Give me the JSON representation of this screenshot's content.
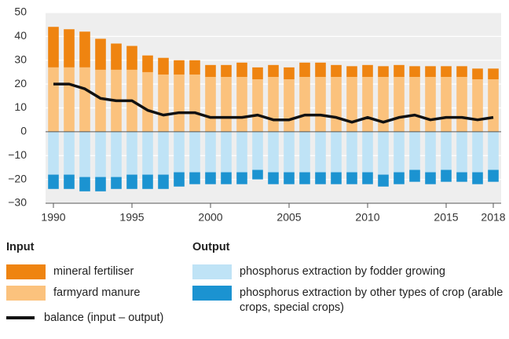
{
  "chart_data": {
    "type": "bar",
    "x": [
      1990,
      1991,
      1992,
      1993,
      1994,
      1995,
      1996,
      1997,
      1998,
      1999,
      2000,
      2001,
      2002,
      2003,
      2004,
      2005,
      2006,
      2007,
      2008,
      2009,
      2010,
      2011,
      2012,
      2013,
      2014,
      2015,
      2016,
      2017,
      2018
    ],
    "xlim": [
      1989.5,
      2018.5
    ],
    "xticks": [
      1990,
      1995,
      2000,
      2005,
      2010,
      2015,
      2018
    ],
    "ylim": [
      -30,
      50
    ],
    "yticks": [
      {
        "value": -30,
        "label": "−30"
      },
      {
        "value": -20,
        "label": "−20"
      },
      {
        "value": -10,
        "label": "−10"
      },
      0,
      10,
      20,
      30,
      40,
      50
    ],
    "grid": true,
    "legend_groups": [
      "Input",
      "Output"
    ],
    "series": [
      {
        "name": "mineral fertiliser",
        "color": "#ef8410",
        "group": 0,
        "type": "bar",
        "values": [
          17,
          16,
          15,
          13,
          11,
          10,
          7,
          7,
          6,
          6,
          5,
          5,
          6,
          5,
          5,
          5,
          6,
          6,
          5,
          4.5,
          5,
          4.5,
          5,
          4.5,
          4.5,
          4.5,
          4.5,
          4.5,
          4.5
        ]
      },
      {
        "name": "farmyard manure",
        "color": "#fbc27d",
        "group": 0,
        "type": "bar",
        "values": [
          27,
          27,
          27,
          26,
          26,
          26,
          25,
          24,
          24,
          24,
          23,
          23,
          23,
          22,
          23,
          22,
          23,
          23,
          23,
          23,
          23,
          23,
          23,
          23,
          23,
          23,
          23,
          22,
          22
        ]
      },
      {
        "name": "phosphorus extraction by fodder growing",
        "color": "#bfe3f6",
        "group": 1,
        "type": "bar",
        "values": [
          -18,
          -18,
          -19,
          -19,
          -19,
          -18,
          -18,
          -18,
          -17,
          -17,
          -17,
          -17,
          -17,
          -16,
          -17,
          -17,
          -17,
          -17,
          -17,
          -17,
          -17,
          -18,
          -17,
          -16,
          -17,
          -16,
          -17,
          -17,
          -16
        ]
      },
      {
        "name": "phosphorus extraction by other types of crop (arable crops, special crops)",
        "color": "#1b93d1",
        "group": 1,
        "type": "bar",
        "values": [
          -6,
          -6,
          -6,
          -6,
          -5,
          -6,
          -6,
          -6,
          -6,
          -5,
          -5,
          -5,
          -5,
          -4,
          -5,
          -5,
          -5,
          -5,
          -5,
          -5,
          -5,
          -5,
          -5,
          -5,
          -5,
          -5,
          -4,
          -5,
          -5
        ]
      },
      {
        "name": "balance (input – output)",
        "color": "#111111",
        "type": "line",
        "values": [
          20,
          20,
          18,
          14,
          13,
          13,
          9,
          7,
          8,
          8,
          6,
          6,
          6,
          7,
          5,
          5,
          7,
          7,
          6,
          4,
          6,
          4,
          6,
          7,
          5,
          6,
          6,
          5,
          6
        ]
      }
    ]
  }
}
